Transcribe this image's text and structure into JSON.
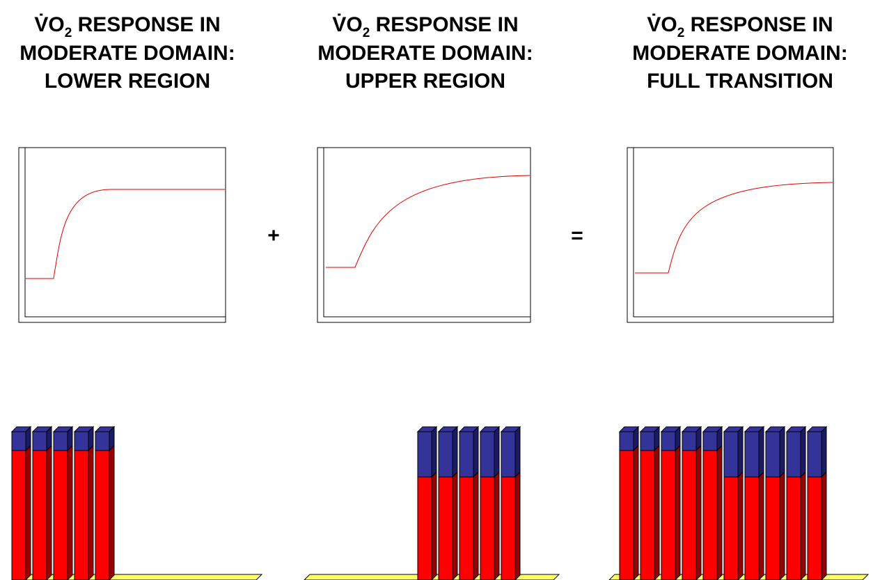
{
  "panels": [
    {
      "title": {
        "symbol": "V̇O",
        "subscript": "2",
        "line1": " RESPONSE IN",
        "line2": "MODERATE DOMAIN:",
        "line3": "LOWER REGION"
      }
    },
    {
      "title": {
        "symbol": "V̇O",
        "subscript": "2",
        "line1": " RESPONSE IN",
        "line2": "MODERATE DOMAIN:",
        "line3": "UPPER REGION"
      }
    },
    {
      "title": {
        "symbol": "V̇O",
        "subscript": "2",
        "line1": " RESPONSE IN",
        "line2": "MODERATE DOMAIN:",
        "line3": "FULL TRANSITION"
      }
    }
  ],
  "operators": [
    "+",
    "="
  ]
}
